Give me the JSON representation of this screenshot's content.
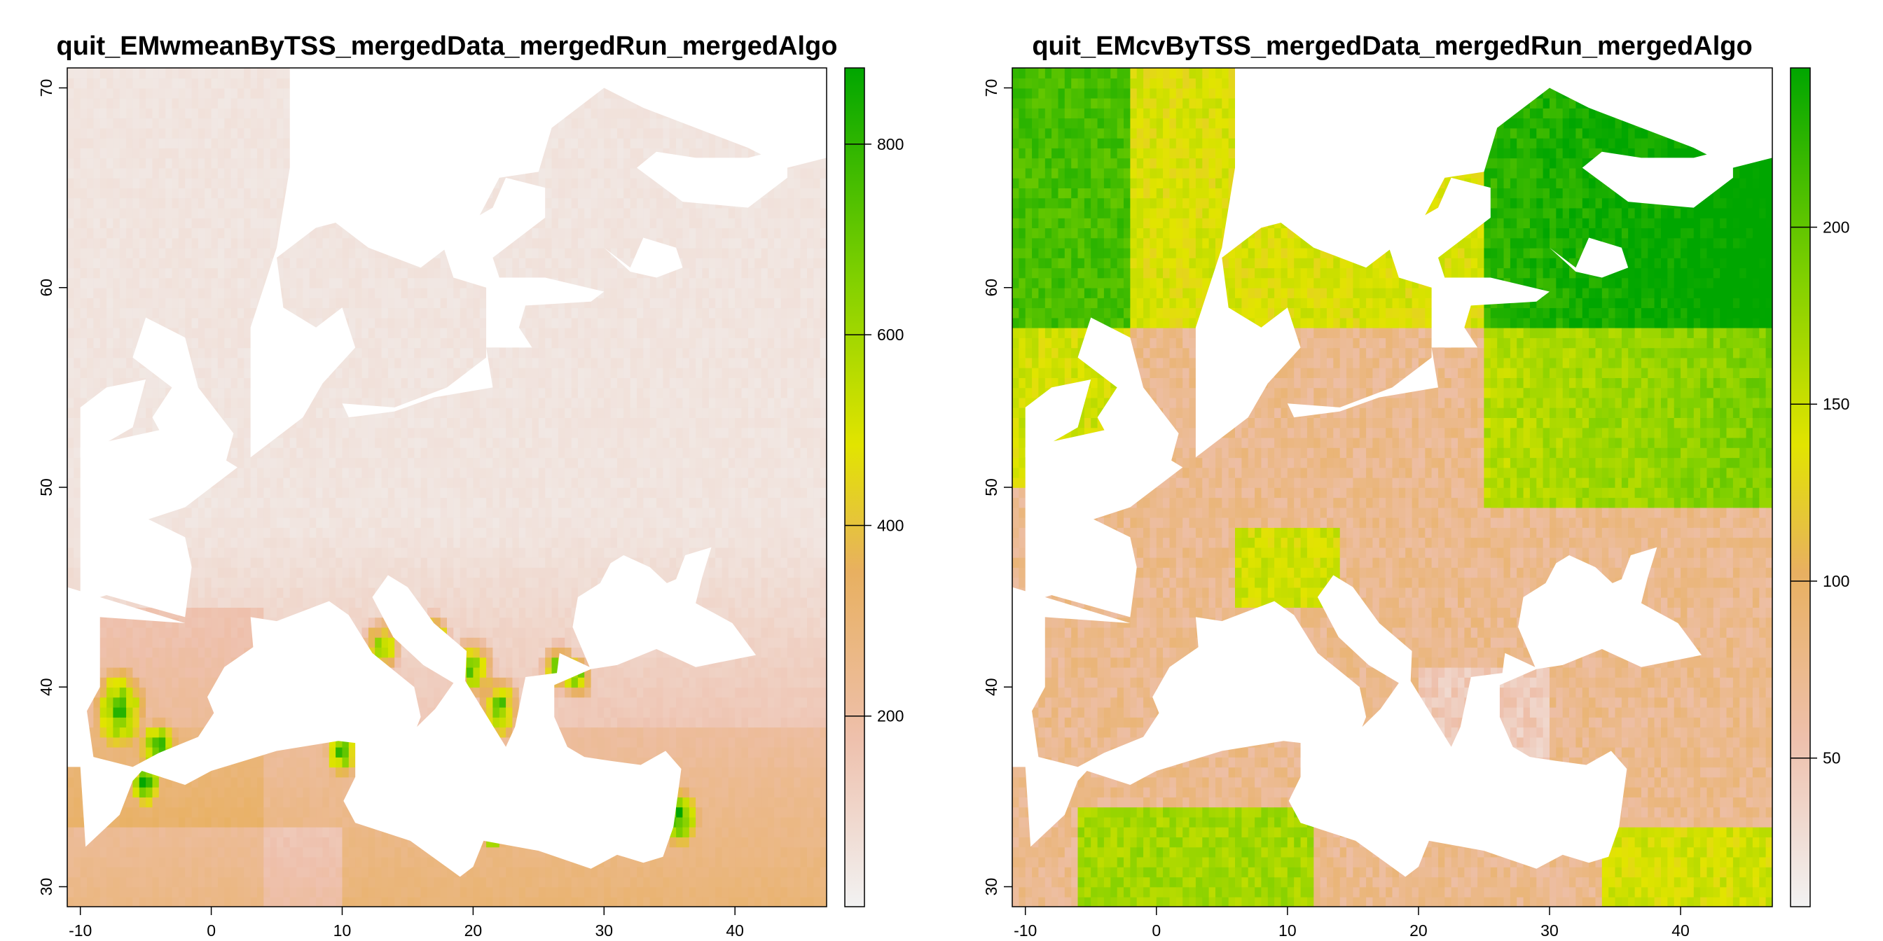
{
  "colors": {
    "background": "#ffffff",
    "frame": "#000000",
    "sea": "#ffffff",
    "ramp": [
      "#f2f2f2",
      "#eec0ac",
      "#e8b060",
      "#e2e400",
      "#80d000",
      "#00a600"
    ]
  },
  "maps": [
    {
      "title": "quit_EMwmeanByTSS_mergedData_mergedRun_mergedAlgo",
      "lon_range": [
        -11,
        47
      ],
      "lat_range": [
        29,
        71
      ],
      "x_ticks": [
        -10,
        0,
        10,
        20,
        30,
        40
      ],
      "y_ticks": [
        30,
        40,
        50,
        60,
        70
      ],
      "legend": {
        "min": 0,
        "max": 880,
        "ticks": [
          200,
          400,
          600,
          800
        ]
      },
      "pattern": "wmean"
    },
    {
      "title": "quit_EMcvByTSS_mergedData_mergedRun_mergedAlgo",
      "lon_range": [
        -11,
        47
      ],
      "lat_range": [
        29,
        71
      ],
      "x_ticks": [
        -10,
        0,
        10,
        20,
        30,
        40
      ],
      "y_ticks": [
        30,
        40,
        50,
        60,
        70
      ],
      "legend": {
        "min": 8,
        "max": 245,
        "ticks": [
          50,
          100,
          150,
          200
        ]
      },
      "pattern": "cv"
    }
  ]
}
